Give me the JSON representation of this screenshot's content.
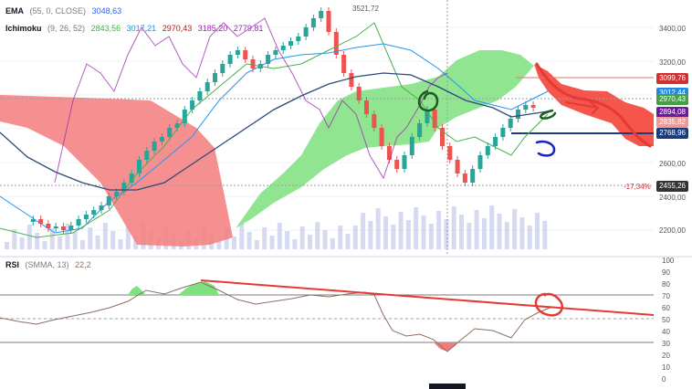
{
  "legend": {
    "ema": {
      "name": "EMA",
      "params": "(55, 0, CLOSE)",
      "value": "3048,63",
      "color": "#2962ff"
    },
    "ichimoku": {
      "name": "Ichimoku",
      "params": "(9, 26, 52)",
      "values": [
        {
          "text": "2843,56",
          "color": "#4caf50"
        },
        {
          "text": "3017,21",
          "color": "#2196f3"
        },
        {
          "text": "2970,43",
          "color": "#b71c1c"
        },
        {
          "text": "3185,20",
          "color": "#9c27b0"
        },
        {
          "text": "2779,81",
          "color": "#9c27b0"
        }
      ]
    },
    "rsi": {
      "name": "RSI",
      "params": "(SMMA, 13)",
      "value": "22,2",
      "color": "#8d6e63"
    }
  },
  "annotations": {
    "high_label": "3521,72",
    "pct_label": "-17,34%"
  },
  "price_axis": {
    "ticks": [
      "3400,00",
      "3200,00",
      "2600,00",
      "2400,00",
      "2200,00"
    ],
    "labels": [
      {
        "text": "3099,76",
        "color": "#d32f2f"
      },
      {
        "text": "3012,44",
        "color": "#1e88e5"
      },
      {
        "text": "2970,43",
        "color": "#43a047"
      },
      {
        "text": "2894,08",
        "color": "#6a1b9a"
      },
      {
        "text": "2835,82",
        "color": "#ef9a9a"
      },
      {
        "text": "2768,96",
        "color": "#1a3c7c"
      },
      {
        "text": "2455,26",
        "color": "#333333"
      }
    ]
  },
  "rsi_axis": {
    "ticks": [
      "100",
      "90",
      "80",
      "70",
      "60",
      "50",
      "40",
      "30",
      "20",
      "10",
      "0"
    ]
  },
  "colors": {
    "bull_candle": "#26a69a",
    "bear_candle": "#ef5350",
    "cloud_bull": "#7ee07e",
    "cloud_bear": "#f57c7c",
    "ema": "#2962ff",
    "tenkan": "#4caf50",
    "kijun": "#2196f3",
    "chikou": "#9c27b0",
    "rsi": "#8d6e63",
    "drawing_red": "#e53935",
    "drawing_green": "#1b5e20",
    "drawing_blue": "#1a23c8"
  }
}
